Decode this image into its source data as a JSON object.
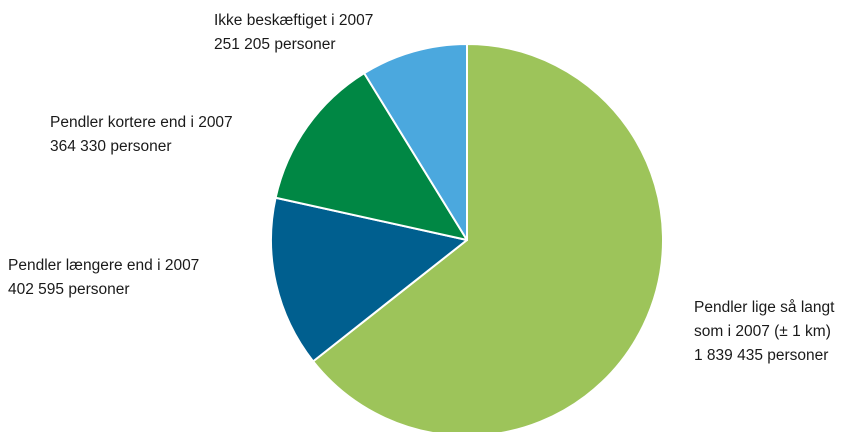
{
  "chart_data": {
    "type": "pie",
    "title": "",
    "start": "12 o'clock",
    "direction": "clockwise",
    "slices": [
      {
        "category": "Pendler lige så langt som i 2007 (± 1 km)",
        "value": 1839435,
        "lines": [
          "Pendler lige så langt",
          "som i 2007 (± 1 km)",
          "1 839 435 personer"
        ],
        "color": "#9dc45a"
      },
      {
        "category": "Pendler længere end i 2007",
        "value": 402595,
        "lines": [
          "Pendler længere end i 2007",
          "402 595 personer"
        ],
        "color": "#005f8f"
      },
      {
        "category": "Pendler kortere end i 2007",
        "value": 364330,
        "lines": [
          "Pendler kortere end i 2007",
          "364 330 personer"
        ],
        "color": "#008744"
      },
      {
        "category": "Ikke beskæftiget i 2007",
        "value": 251205,
        "lines": [
          "Ikke beskæftiget i 2007",
          "251 205 personer"
        ],
        "color": "#4ba8de"
      }
    ]
  }
}
